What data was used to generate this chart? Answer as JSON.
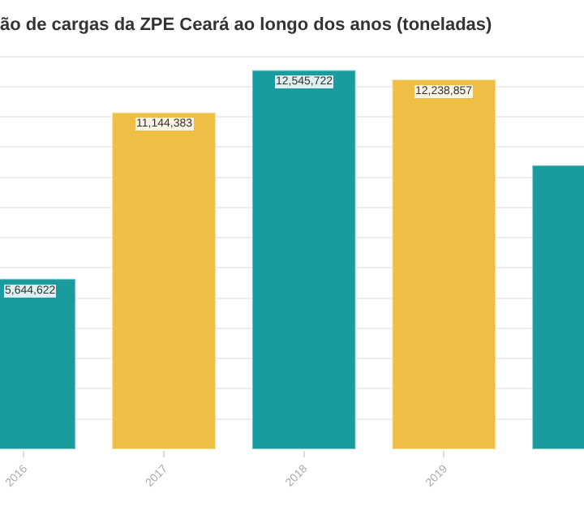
{
  "chart_data": {
    "type": "bar",
    "title": "ão de cargas da ZPE Ceará ao longo dos anos (toneladas)",
    "x": [
      2016,
      2017,
      2018,
      2019,
      2020
    ],
    "values": [
      5644622,
      11144383,
      12545722,
      12238857,
      9400000
    ],
    "colors": [
      "#1a9c9f",
      "#efbe45",
      "#1a9c9f",
      "#efbe45",
      "#1a9c9f"
    ],
    "value_labels": [
      "5,644,622",
      "11,144,383",
      "12,545,722",
      "12,238,857",
      null
    ],
    "xlim": [
      2015.83,
      2020
    ],
    "xticks": [
      2016,
      2017,
      2018,
      2019
    ],
    "tick_labels": "x",
    "grid": "y"
  }
}
